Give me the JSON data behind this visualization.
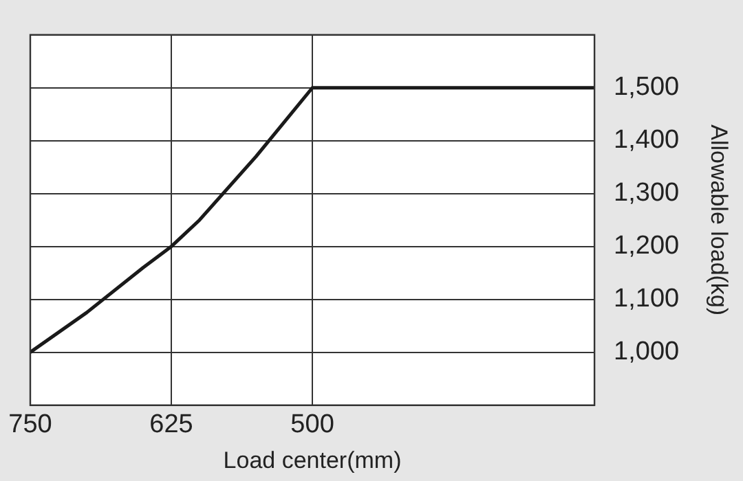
{
  "chart_data": {
    "type": "line",
    "xlabel": "Load center(mm)",
    "ylabel": "Allowable load(kg)",
    "x": [
      750,
      700,
      650,
      625,
      600,
      550,
      500,
      250
    ],
    "series": [
      {
        "color": "#1a1a1a",
        "values": [
          1000,
          1075,
          1160,
          1200,
          1250,
          1370,
          1500,
          1500
        ]
      }
    ],
    "xlim": [
      750,
      250
    ],
    "xticks": [
      750,
      625,
      500
    ],
    "ylim": [
      900,
      1600
    ],
    "yticks": [
      {
        "value": 1000,
        "label": "1,000"
      },
      {
        "value": 1100,
        "label": "1,100"
      },
      {
        "value": 1200,
        "label": "1,200"
      },
      {
        "value": 1300,
        "label": "1,300"
      },
      {
        "value": 1400,
        "label": "1,400"
      },
      {
        "value": 1500,
        "label": "1,500"
      }
    ],
    "grid": true,
    "legend": false,
    "marker": "none",
    "line_style": "solid"
  }
}
